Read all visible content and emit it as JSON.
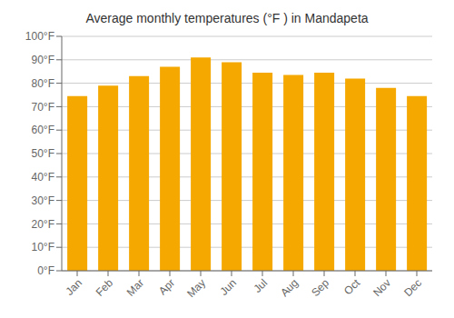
{
  "chart_data": {
    "type": "bar",
    "title": "Average monthly temperatures (°F ) in Mandapeta",
    "categories": [
      "Jan",
      "Feb",
      "Mar",
      "Apr",
      "May",
      "Jun",
      "Jul",
      "Aug",
      "Sep",
      "Oct",
      "Nov",
      "Dec"
    ],
    "values": [
      74.5,
      79,
      83,
      87,
      91,
      89,
      84.5,
      83.5,
      84.5,
      82,
      78,
      74.5
    ],
    "color": "#F5A800",
    "ylim": [
      0,
      100
    ],
    "yticks": [
      {
        "value": 0,
        "label": "0°F"
      },
      {
        "value": 10,
        "label": "10°F"
      },
      {
        "value": 20,
        "label": "20°F"
      },
      {
        "value": 30,
        "label": "30°F"
      },
      {
        "value": 40,
        "label": "40°F"
      },
      {
        "value": 50,
        "label": "50°F"
      },
      {
        "value": 60,
        "label": "60°F"
      },
      {
        "value": 70,
        "label": "70°F"
      },
      {
        "value": 80,
        "label": "80°F"
      },
      {
        "value": 90,
        "label": "90°F"
      },
      {
        "value": 100,
        "label": "100°F"
      }
    ],
    "grid": true
  }
}
